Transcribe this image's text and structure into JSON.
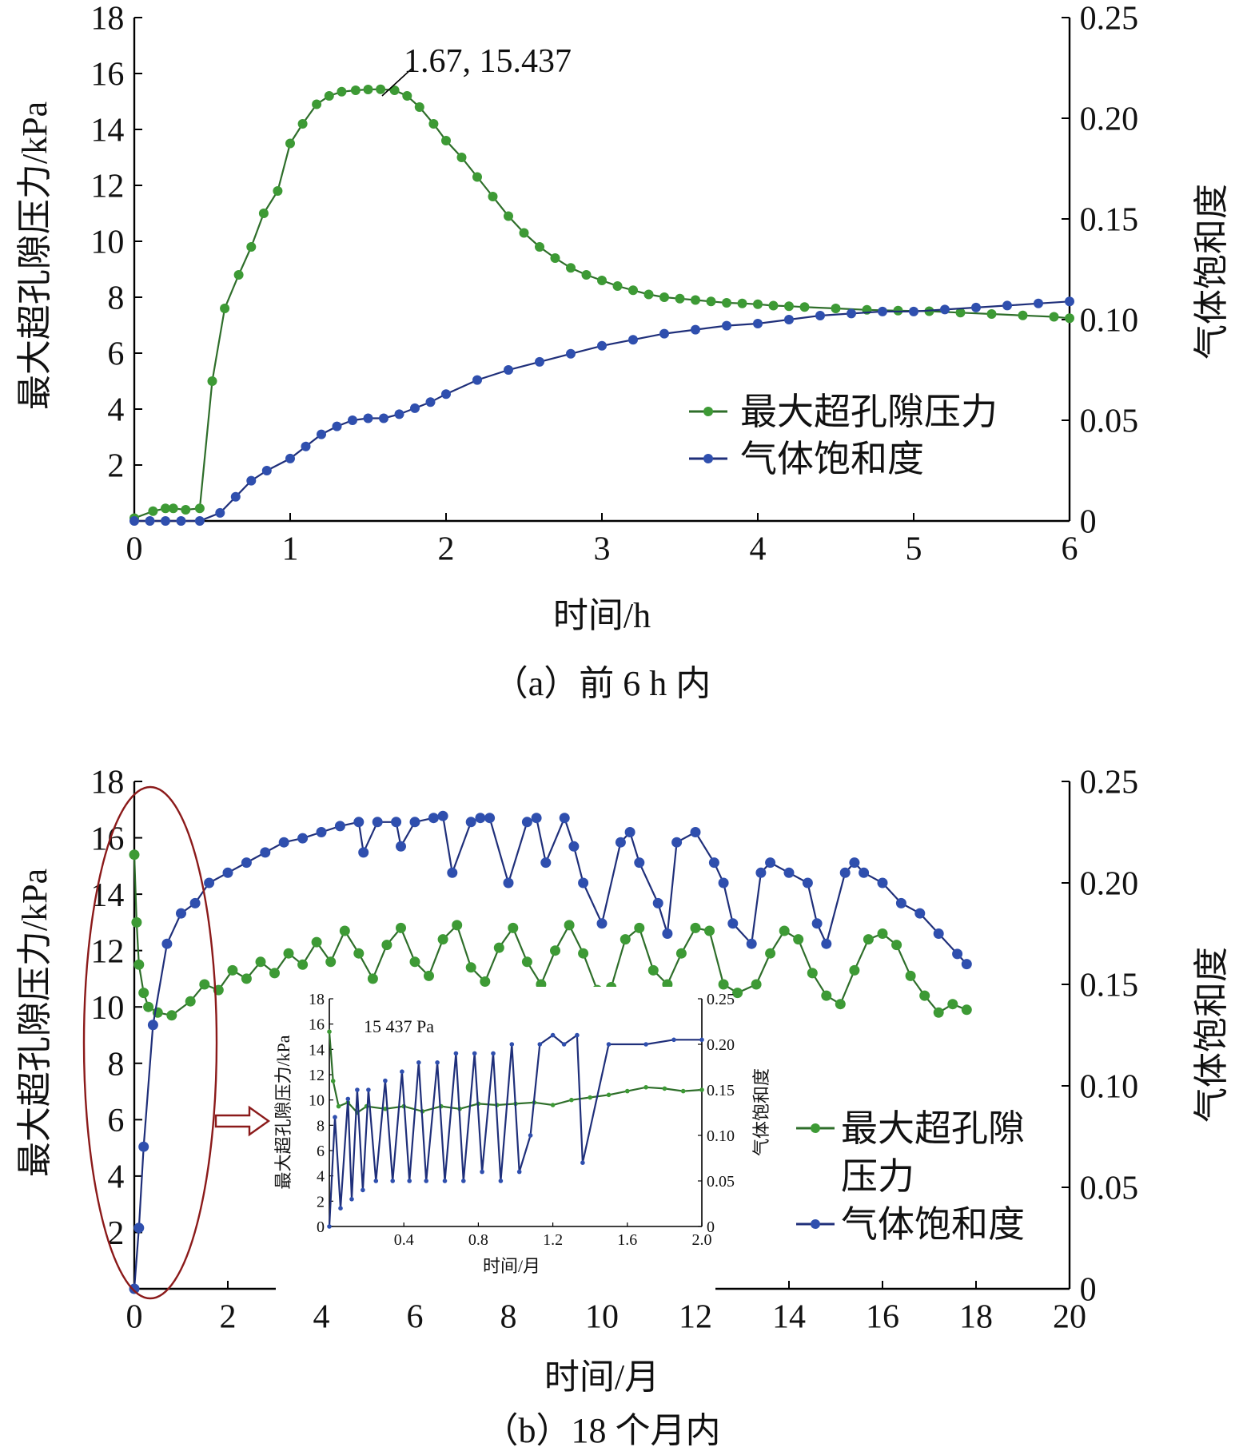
{
  "colors": {
    "green": "#3d9a35",
    "green_line": "#2e6e2a",
    "blue": "#2f4fae",
    "blue_line": "#1f2f7a",
    "ellipse": "#8b1a1a"
  },
  "chart_data": [
    {
      "id": "a",
      "type": "line",
      "caption": "（a）前 6 h 内",
      "xlabel": "时间/h",
      "ylabel_left": "最大超孔隙压力/kPa",
      "ylabel_right": "气体饱和度",
      "xlim": [
        0,
        6
      ],
      "ylim_left": [
        0,
        18
      ],
      "ylim_right": [
        0,
        0.25
      ],
      "xticks": [
        "0",
        "1",
        "2",
        "3",
        "4",
        "5",
        "6"
      ],
      "yticks_left": [
        "2",
        "4",
        "6",
        "8",
        "10",
        "12",
        "14",
        "16",
        "18"
      ],
      "yticks_right": [
        "0",
        "0.05",
        "0.10",
        "0.15",
        "0.20",
        "0.25"
      ],
      "annotation": {
        "text": "1.67, 15.437",
        "x": 1.67,
        "y": 15.437
      },
      "legend": [
        "最大超孔隙压力",
        "气体饱和度"
      ],
      "series": [
        {
          "name": "最大超孔隙压力",
          "axis": "left",
          "color": "green",
          "x": [
            0,
            0.12,
            0.2,
            0.25,
            0.33,
            0.42,
            0.5,
            0.58,
            0.67,
            0.75,
            0.83,
            0.92,
            1.0,
            1.08,
            1.17,
            1.25,
            1.33,
            1.42,
            1.5,
            1.58,
            1.67,
            1.75,
            1.83,
            1.92,
            2.0,
            2.1,
            2.2,
            2.3,
            2.4,
            2.5,
            2.6,
            2.7,
            2.8,
            2.9,
            3.0,
            3.1,
            3.2,
            3.3,
            3.4,
            3.5,
            3.6,
            3.7,
            3.8,
            3.9,
            4.0,
            4.1,
            4.2,
            4.3,
            4.5,
            4.7,
            4.9,
            5.1,
            5.3,
            5.5,
            5.7,
            5.9,
            6.0
          ],
          "y": [
            0.1,
            0.35,
            0.45,
            0.45,
            0.4,
            0.45,
            5.0,
            7.6,
            8.8,
            9.8,
            11.0,
            11.8,
            13.5,
            14.2,
            14.9,
            15.2,
            15.35,
            15.4,
            15.43,
            15.437,
            15.4,
            15.2,
            14.8,
            14.2,
            13.6,
            13.0,
            12.3,
            11.6,
            10.9,
            10.3,
            9.8,
            9.4,
            9.05,
            8.8,
            8.6,
            8.4,
            8.25,
            8.1,
            8.0,
            7.95,
            7.9,
            7.85,
            7.8,
            7.78,
            7.75,
            7.7,
            7.68,
            7.65,
            7.6,
            7.55,
            7.52,
            7.5,
            7.45,
            7.4,
            7.35,
            7.3,
            7.25
          ]
        },
        {
          "name": "气体饱和度",
          "axis": "right",
          "color": "blue",
          "x": [
            0,
            0.1,
            0.2,
            0.3,
            0.42,
            0.55,
            0.65,
            0.75,
            0.85,
            1.0,
            1.1,
            1.2,
            1.3,
            1.4,
            1.5,
            1.6,
            1.7,
            1.8,
            1.9,
            2.0,
            2.2,
            2.4,
            2.6,
            2.8,
            3.0,
            3.2,
            3.4,
            3.6,
            3.8,
            4.0,
            4.2,
            4.4,
            4.6,
            4.8,
            5.0,
            5.2,
            5.4,
            5.6,
            5.8,
            6.0
          ],
          "y": [
            0,
            0,
            0,
            0,
            0,
            0.004,
            0.012,
            0.02,
            0.025,
            0.031,
            0.037,
            0.043,
            0.047,
            0.05,
            0.051,
            0.051,
            0.053,
            0.056,
            0.059,
            0.063,
            0.07,
            0.075,
            0.079,
            0.083,
            0.087,
            0.09,
            0.093,
            0.095,
            0.097,
            0.098,
            0.1,
            0.102,
            0.103,
            0.104,
            0.104,
            0.105,
            0.106,
            0.107,
            0.108,
            0.109
          ]
        }
      ]
    },
    {
      "id": "b",
      "type": "line",
      "caption": "（b）18 个月内",
      "xlabel": "时间/月",
      "ylabel_left": "最大超孔隙压力/kPa",
      "ylabel_right": "气体饱和度",
      "xlim": [
        0,
        20
      ],
      "ylim_left": [
        0,
        18
      ],
      "ylim_right": [
        0,
        0.25
      ],
      "xticks": [
        "0",
        "2",
        "4",
        "6",
        "8",
        "10",
        "12",
        "14",
        "16",
        "18",
        "20"
      ],
      "yticks_left": [
        "2",
        "4",
        "6",
        "8",
        "10",
        "12",
        "14",
        "16",
        "18"
      ],
      "yticks_right": [
        "0",
        "0.05",
        "0.10",
        "0.15",
        "0.20",
        "0.25"
      ],
      "legend": [
        "最大超孔隙压力",
        "气体饱和度"
      ],
      "series": [
        {
          "name": "最大超孔隙压力",
          "axis": "left",
          "color": "green",
          "x": [
            0,
            0.05,
            0.1,
            0.2,
            0.3,
            0.5,
            0.8,
            1.2,
            1.5,
            1.8,
            2.1,
            2.4,
            2.7,
            3.0,
            3.3,
            3.6,
            3.9,
            4.2,
            4.5,
            4.8,
            5.1,
            5.4,
            5.7,
            6.0,
            6.3,
            6.6,
            6.9,
            7.2,
            7.5,
            7.8,
            8.1,
            8.4,
            8.7,
            9.0,
            9.3,
            9.6,
            9.9,
            10.2,
            10.5,
            10.8,
            11.1,
            11.4,
            11.7,
            12.0,
            12.3,
            12.6,
            12.9,
            13.3,
            13.6,
            13.9,
            14.2,
            14.5,
            14.8,
            15.1,
            15.4,
            15.7,
            16.0,
            16.3,
            16.6,
            16.9,
            17.2,
            17.5,
            17.8
          ],
          "y": [
            15.4,
            13.0,
            11.5,
            10.5,
            10.0,
            9.8,
            9.7,
            10.2,
            10.8,
            10.6,
            11.3,
            11.0,
            11.6,
            11.2,
            11.9,
            11.5,
            12.3,
            11.6,
            12.7,
            11.9,
            11.0,
            12.2,
            12.8,
            11.6,
            11.1,
            12.4,
            12.9,
            11.4,
            10.9,
            12.1,
            12.8,
            11.6,
            10.8,
            12.0,
            12.9,
            11.9,
            10.6,
            10.7,
            12.4,
            12.8,
            11.3,
            10.8,
            11.9,
            12.8,
            12.7,
            10.8,
            10.5,
            10.8,
            11.9,
            12.7,
            12.4,
            11.2,
            10.4,
            10.1,
            11.3,
            12.4,
            12.6,
            12.2,
            11.1,
            10.4,
            9.8,
            10.1,
            9.9
          ]
        },
        {
          "name": "气体饱和度",
          "axis": "right",
          "color": "blue",
          "x": [
            0,
            0.1,
            0.2,
            0.4,
            0.7,
            1.0,
            1.3,
            1.6,
            2.0,
            2.4,
            2.8,
            3.2,
            3.6,
            4.0,
            4.4,
            4.8,
            4.9,
            5.2,
            5.6,
            5.7,
            6.0,
            6.4,
            6.6,
            6.8,
            7.2,
            7.4,
            7.6,
            8.0,
            8.4,
            8.6,
            8.8,
            9.2,
            9.4,
            9.6,
            10.0,
            10.4,
            10.6,
            10.8,
            11.2,
            11.4,
            11.6,
            12.0,
            12.4,
            12.6,
            12.8,
            13.2,
            13.4,
            13.6,
            14.0,
            14.4,
            14.6,
            14.8,
            15.2,
            15.4,
            15.6,
            16.0,
            16.4,
            16.8,
            17.2,
            17.6,
            17.8
          ],
          "y": [
            0,
            0.03,
            0.07,
            0.13,
            0.17,
            0.185,
            0.19,
            0.2,
            0.205,
            0.21,
            0.215,
            0.22,
            0.222,
            0.225,
            0.228,
            0.23,
            0.215,
            0.23,
            0.23,
            0.218,
            0.23,
            0.232,
            0.233,
            0.205,
            0.23,
            0.232,
            0.232,
            0.2,
            0.23,
            0.232,
            0.21,
            0.232,
            0.218,
            0.2,
            0.18,
            0.22,
            0.225,
            0.21,
            0.19,
            0.175,
            0.22,
            0.225,
            0.21,
            0.2,
            0.18,
            0.17,
            0.205,
            0.21,
            0.205,
            0.2,
            0.18,
            0.17,
            0.205,
            0.21,
            0.205,
            0.2,
            0.19,
            0.185,
            0.175,
            0.165,
            0.16
          ]
        }
      ],
      "inset": {
        "annotation": "15 437 Pa",
        "xlabel": "时间/月",
        "ylabel_left": "最大超孔隙压力/kPa",
        "ylabel_right": "气体饱和度",
        "xlim": [
          0,
          2.0
        ],
        "ylim_left": [
          0,
          18
        ],
        "ylim_right": [
          0,
          0.25
        ],
        "xticks": [
          "0.4",
          "0.8",
          "1.2",
          "1.6",
          "2.0"
        ],
        "yticks_left": [
          "0",
          "2",
          "4",
          "6",
          "8",
          "10",
          "12",
          "14",
          "16",
          "18"
        ],
        "yticks_right": [
          "0",
          "0.05",
          "0.10",
          "0.15",
          "0.20",
          "0.25"
        ],
        "series": [
          {
            "name": "最大超孔隙压力",
            "axis": "left",
            "color": "green",
            "x": [
              0,
              0.02,
              0.05,
              0.1,
              0.15,
              0.2,
              0.3,
              0.4,
              0.5,
              0.6,
              0.7,
              0.8,
              0.9,
              1.0,
              1.1,
              1.2,
              1.3,
              1.4,
              1.5,
              1.6,
              1.7,
              1.8,
              1.9,
              2.0
            ],
            "y": [
              15.4,
              11.5,
              9.5,
              9.8,
              9.0,
              9.5,
              9.3,
              9.5,
              9.1,
              9.5,
              9.3,
              9.7,
              9.6,
              9.7,
              9.8,
              9.6,
              10.0,
              10.2,
              10.4,
              10.7,
              11.0,
              10.9,
              10.7,
              10.8
            ]
          },
          {
            "name": "气体饱和度",
            "axis": "right",
            "color": "blue",
            "x": [
              0,
              0.03,
              0.06,
              0.1,
              0.12,
              0.15,
              0.18,
              0.21,
              0.25,
              0.3,
              0.34,
              0.39,
              0.43,
              0.48,
              0.52,
              0.58,
              0.62,
              0.68,
              0.72,
              0.78,
              0.82,
              0.88,
              0.92,
              0.98,
              1.02,
              1.08,
              1.13,
              1.2,
              1.26,
              1.33,
              1.36,
              1.5,
              1.7,
              1.85,
              2.0
            ],
            "y": [
              0,
              0.12,
              0.02,
              0.14,
              0.03,
              0.15,
              0.04,
              0.15,
              0.05,
              0.16,
              0.05,
              0.17,
              0.05,
              0.18,
              0.05,
              0.18,
              0.05,
              0.19,
              0.05,
              0.19,
              0.06,
              0.19,
              0.05,
              0.2,
              0.06,
              0.1,
              0.2,
              0.21,
              0.2,
              0.21,
              0.07,
              0.2,
              0.2,
              0.205,
              0.205
            ]
          }
        ]
      }
    }
  ]
}
